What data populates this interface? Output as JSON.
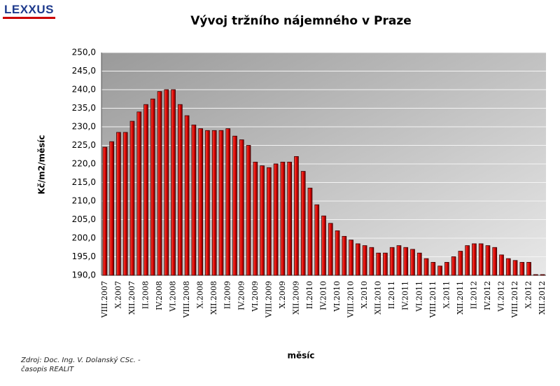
{
  "logo": "LEXXUS",
  "source": [
    "Zdroj:  Doc. Ing. V. Dolanský CSc. -",
    "časopis REALIT"
  ],
  "chart_data": {
    "type": "bar",
    "title": "Vývoj tržního nájemného v Praze",
    "y_label": "Kč/m2/měsíc",
    "x_label": "měsíc",
    "color": "#d40000",
    "grid": true,
    "ylim": [
      190,
      250
    ],
    "yticks": [
      {
        "value": 190,
        "label": "190,0"
      },
      {
        "value": 195,
        "label": "195,0"
      },
      {
        "value": 200,
        "label": "200,0"
      },
      {
        "value": 205,
        "label": "205,0"
      },
      {
        "value": 210,
        "label": "210,0"
      },
      {
        "value": 215,
        "label": "215,0"
      },
      {
        "value": 220,
        "label": "220,0"
      },
      {
        "value": 225,
        "label": "225,0"
      },
      {
        "value": 230,
        "label": "230,0"
      },
      {
        "value": 235,
        "label": "235,0"
      },
      {
        "value": 240,
        "label": "240,0"
      },
      {
        "value": 245,
        "label": "245,0"
      },
      {
        "value": 250,
        "label": "250,0"
      }
    ],
    "categories": [
      "VIII.2007",
      null,
      "X.2007",
      null,
      "XII.2007",
      null,
      "II.2008",
      null,
      "IV.2008",
      null,
      "VI.2008",
      null,
      "VIII.2008",
      null,
      "X.2008",
      null,
      "XII.2008",
      null,
      "II.2009",
      null,
      "IV.2009",
      null,
      "VI.2009",
      null,
      "VIII.2009",
      null,
      "X.2009",
      null,
      "XII.2009",
      null,
      "II.2010",
      null,
      "IV.2010",
      null,
      "VI.2010",
      null,
      "VIII.2010",
      null,
      "X.2010",
      null,
      "XII.2010",
      null,
      "II.2011",
      null,
      "IV.2011",
      null,
      "VI.2011",
      null,
      "VIII.2011",
      null,
      "X.2011",
      null,
      "XII.2011",
      null,
      "II.2012",
      null,
      "IV.2012",
      null,
      "VI.2012",
      null,
      "VIII.2012",
      null,
      "X.2012",
      null,
      "XII.2012"
    ],
    "values": [
      224.5,
      226,
      228.5,
      228.5,
      231.5,
      234,
      236,
      237.5,
      239.5,
      240,
      240,
      236,
      233,
      230.5,
      229.5,
      229,
      229,
      229,
      229.5,
      227.5,
      226.5,
      225,
      220.5,
      219.5,
      219,
      220,
      220.5,
      220.5,
      222,
      218,
      213.5,
      209,
      206,
      204,
      202,
      200.5,
      199.5,
      198.5,
      198,
      197.5,
      196,
      196,
      197.5,
      198,
      197.5,
      197,
      196,
      194.5,
      193.5,
      192.5,
      193.5,
      195,
      196.5,
      198,
      198.5,
      198.5,
      198,
      197.5,
      195.5,
      194.5,
      194,
      193.5,
      193.5,
      190.2,
      190.2
    ]
  }
}
